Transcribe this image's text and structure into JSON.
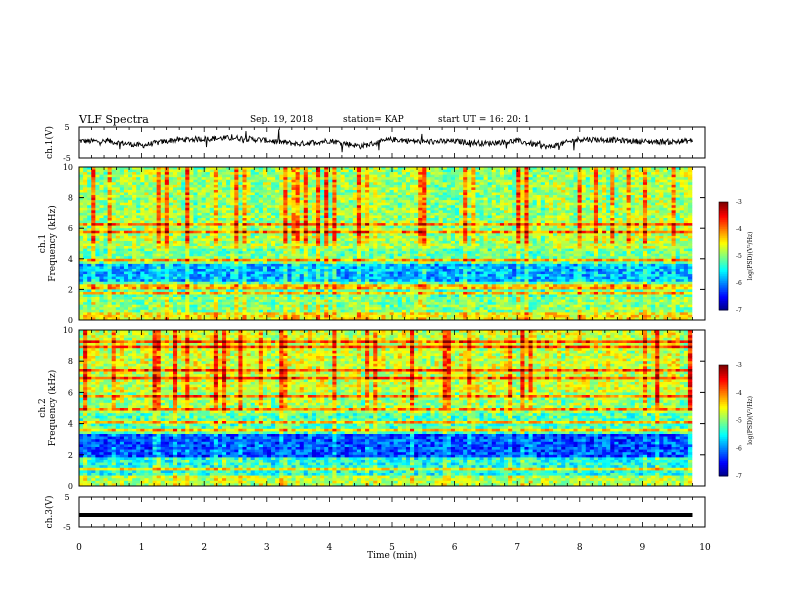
{
  "header": {
    "title": "VLF Spectra",
    "date": "Sep. 19, 2018",
    "station": "station= KAP",
    "start": "start  UT =   16: 20: 1"
  },
  "chart_data": [
    {
      "name": "ch1_waveform",
      "type": "line",
      "ylabel": "ch.1(V)",
      "ylim": [
        -5,
        5
      ],
      "yticks": [
        "5",
        "-5"
      ],
      "xlim": [
        0,
        10
      ],
      "trace_color": "#000000",
      "x": [
        0,
        0.5,
        1,
        1.5,
        2,
        2.5,
        3,
        3.5,
        4,
        4.5,
        5,
        5.5,
        6,
        6.5,
        7,
        7.5,
        8,
        8.5,
        9,
        9.5,
        9.8
      ],
      "y": [
        0.5,
        0.3,
        -1,
        0.8,
        1.2,
        1.5,
        0.7,
        -0.5,
        0.6,
        -1.2,
        1,
        0.2,
        0.4,
        -0.3,
        0.5,
        -1.5,
        1.1,
        0.8,
        0.3,
        0.2,
        0.6
      ]
    },
    {
      "name": "ch1_spectrogram",
      "type": "heatmap",
      "ylabel": "ch.1\nFrequency (kHz)",
      "ylim": [
        0,
        10
      ],
      "yticks": [
        "0",
        "2",
        "4",
        "6",
        "8",
        "10"
      ],
      "xlim": [
        0,
        10
      ],
      "colorbar": {
        "label": "log(PSD)(V²/Hz)",
        "range": [
          -7,
          -3
        ],
        "ticks": [
          "-3",
          "-4",
          "-5",
          "-6",
          "-7"
        ]
      },
      "bands": [
        {
          "from": 0.0,
          "to": 0.5,
          "level": -4.5
        },
        {
          "from": 0.5,
          "to": 1.5,
          "level": -5.0
        },
        {
          "from": 1.5,
          "to": 2.5,
          "level": -5.2
        },
        {
          "from": 2.5,
          "to": 3.6,
          "level": -5.8
        },
        {
          "from": 3.6,
          "to": 4.6,
          "level": -5.1
        },
        {
          "from": 4.6,
          "to": 5.5,
          "level": -4.8
        },
        {
          "from": 5.5,
          "to": 10.0,
          "level": -4.9
        }
      ]
    },
    {
      "name": "ch2_spectrogram",
      "type": "heatmap",
      "ylabel": "ch.2\nFrequency (kHz)",
      "ylim": [
        0,
        10
      ],
      "yticks": [
        "0",
        "2",
        "4",
        "6",
        "8",
        "10"
      ],
      "xlim": [
        0,
        10
      ],
      "colorbar": {
        "label": "log(PSD)(V²/Hz)",
        "range": [
          -7,
          -3
        ],
        "ticks": [
          "-3",
          "-4",
          "-5",
          "-6",
          "-7"
        ]
      },
      "bands": [
        {
          "from": 0.0,
          "to": 0.6,
          "level": -4.8
        },
        {
          "from": 0.6,
          "to": 1.8,
          "level": -5.4
        },
        {
          "from": 1.8,
          "to": 3.4,
          "level": -6.2
        },
        {
          "from": 3.4,
          "to": 4.6,
          "level": -5.2
        },
        {
          "from": 4.6,
          "to": 6.0,
          "level": -4.9
        },
        {
          "from": 6.0,
          "to": 10.0,
          "level": -4.7
        }
      ]
    },
    {
      "name": "ch3_waveform",
      "type": "line",
      "ylabel": "ch.3(V)",
      "ylim": [
        -5,
        5
      ],
      "yticks": [
        "5",
        "-5"
      ],
      "xlim": [
        0,
        10
      ],
      "xlabel": "Time (min)",
      "xticks": [
        "0",
        "1",
        "2",
        "3",
        "4",
        "5",
        "6",
        "7",
        "8",
        "9",
        "10"
      ],
      "trace_color": "#000000",
      "x": [
        0,
        9.8
      ],
      "y": [
        -1,
        -1
      ]
    }
  ]
}
